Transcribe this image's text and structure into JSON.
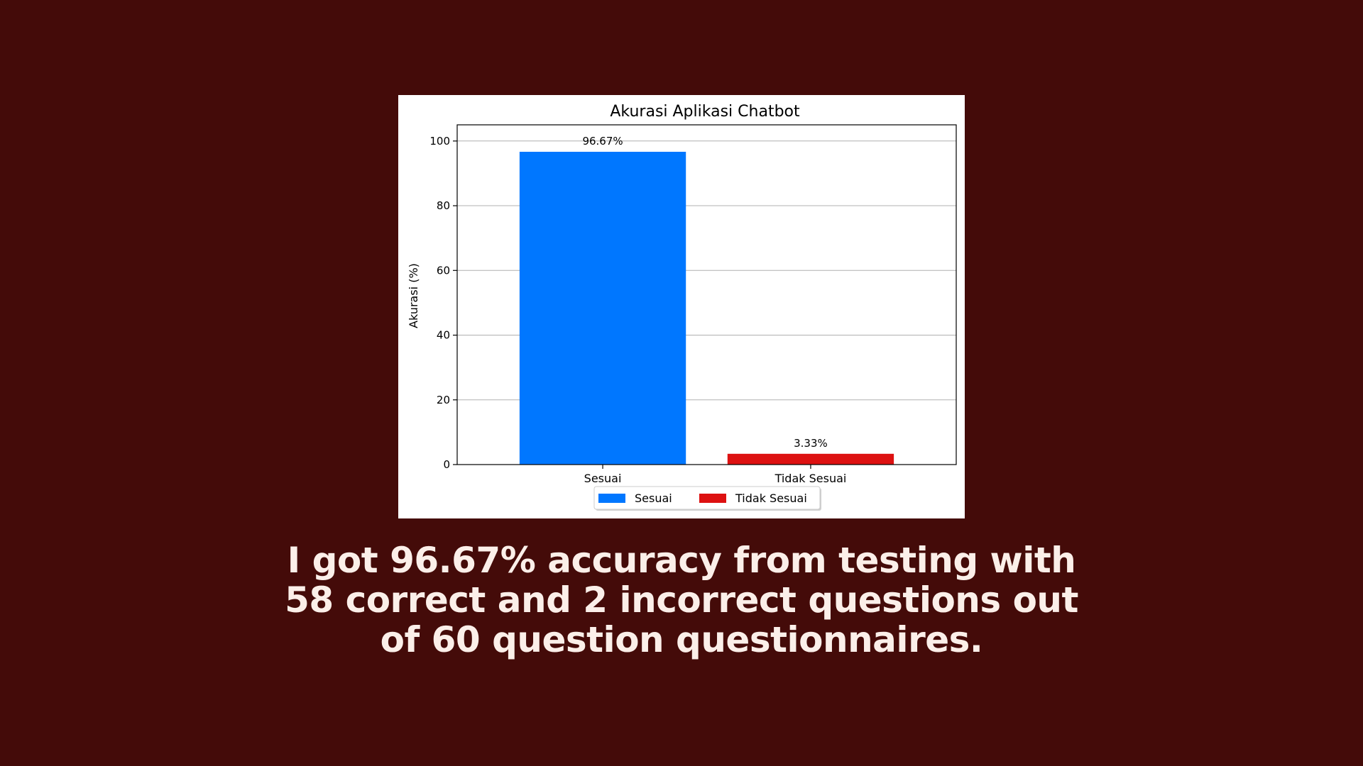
{
  "caption": {
    "lines": [
      "I got 96.67% accuracy from testing with",
      "58 correct and 2 incorrect questions out",
      "of 60 question questionnaires."
    ]
  },
  "chart_data": {
    "type": "bar",
    "title": "Akurasi Aplikasi Chatbot",
    "xlabel": "",
    "ylabel": "Akurasi (%)",
    "categories": [
      "Sesuai",
      "Tidak Sesuai"
    ],
    "values": [
      96.67,
      3.33
    ],
    "data_labels": [
      "96.67%",
      "3.33%"
    ],
    "colors": [
      "#0077ff",
      "#dd1111"
    ],
    "ylim": [
      0,
      105
    ],
    "yticks": [
      0,
      20,
      40,
      60,
      80,
      100
    ],
    "grid": "horizontal",
    "legend": {
      "placement": "below-center",
      "entries": [
        {
          "label": "Sesuai",
          "color": "#0077ff"
        },
        {
          "label": "Tidak Sesuai",
          "color": "#dd1111"
        }
      ]
    }
  }
}
